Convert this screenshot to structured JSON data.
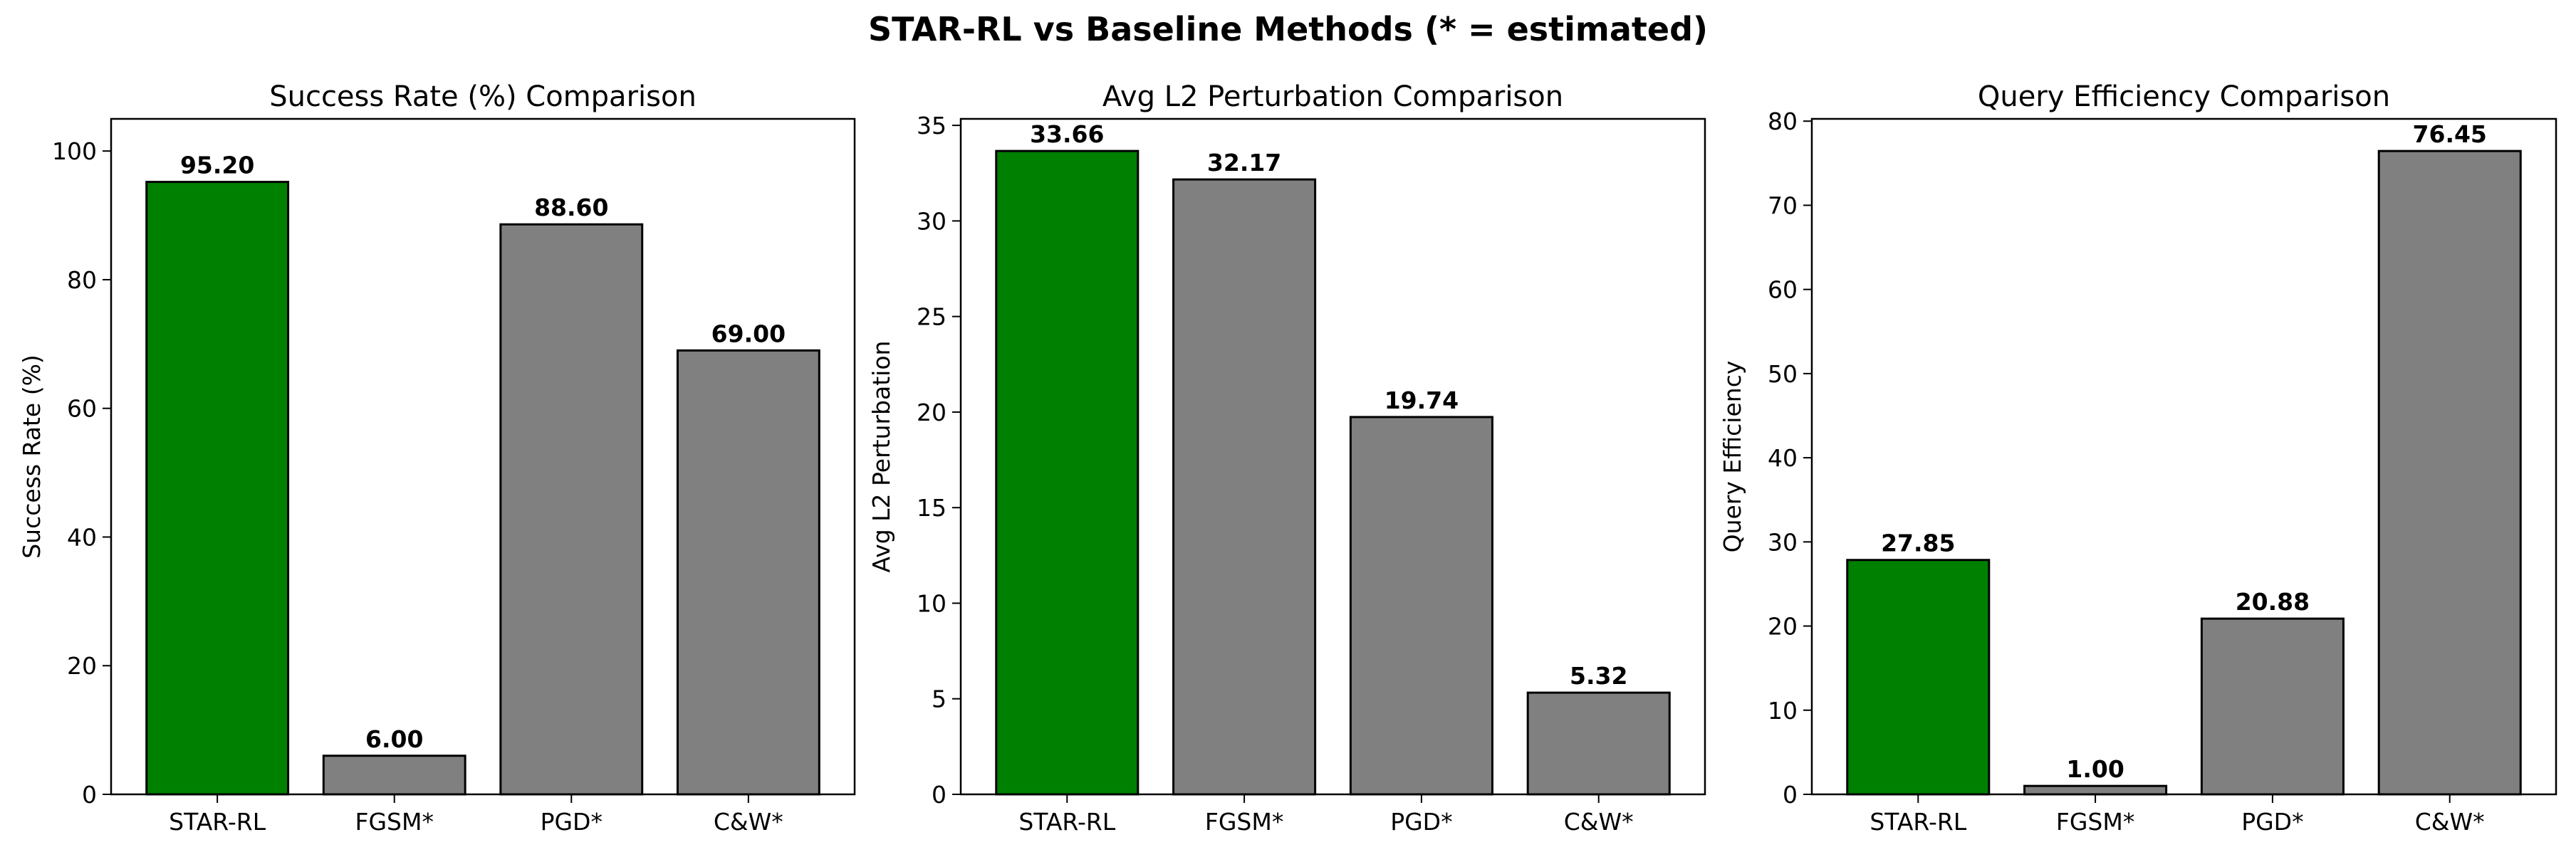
{
  "figure": {
    "suptitle": "STAR-RL vs Baseline Methods (* = estimated)"
  },
  "colors": {
    "highlight": "#008000",
    "baseline": "#808080",
    "edge": "#000000",
    "text": "#000000"
  },
  "chart_data": [
    {
      "type": "bar",
      "title": "Success Rate (%) Comparison",
      "xlabel": "",
      "ylabel": "Success Rate (%)",
      "categories": [
        "STAR-RL",
        "FGSM*",
        "PGD*",
        "C&W*"
      ],
      "values": [
        95.2,
        6.0,
        88.6,
        69.0
      ],
      "value_labels": [
        "95.20",
        "6.00",
        "88.60",
        "69.00"
      ],
      "ylim": [
        0,
        105
      ],
      "yticks": [
        0,
        20,
        40,
        60,
        80,
        100
      ],
      "grid": false
    },
    {
      "type": "bar",
      "title": "Avg L2 Perturbation Comparison",
      "xlabel": "",
      "ylabel": "Avg L2 Perturbation",
      "categories": [
        "STAR-RL",
        "FGSM*",
        "PGD*",
        "C&W*"
      ],
      "values": [
        33.66,
        32.17,
        19.74,
        5.32
      ],
      "value_labels": [
        "33.66",
        "32.17",
        "19.74",
        "5.32"
      ],
      "ylim": [
        0,
        35.34
      ],
      "yticks": [
        0,
        5,
        10,
        15,
        20,
        25,
        30,
        35
      ],
      "grid": false
    },
    {
      "type": "bar",
      "title": "Query Efficiency Comparison",
      "xlabel": "",
      "ylabel": "Query Efficiency",
      "categories": [
        "STAR-RL",
        "FGSM*",
        "PGD*",
        "C&W*"
      ],
      "values": [
        27.85,
        1.0,
        20.88,
        76.45
      ],
      "value_labels": [
        "27.85",
        "1.00",
        "20.88",
        "76.45"
      ],
      "ylim": [
        0,
        80.27
      ],
      "yticks": [
        0,
        10,
        20,
        30,
        40,
        50,
        60,
        70,
        80
      ],
      "grid": false
    }
  ]
}
